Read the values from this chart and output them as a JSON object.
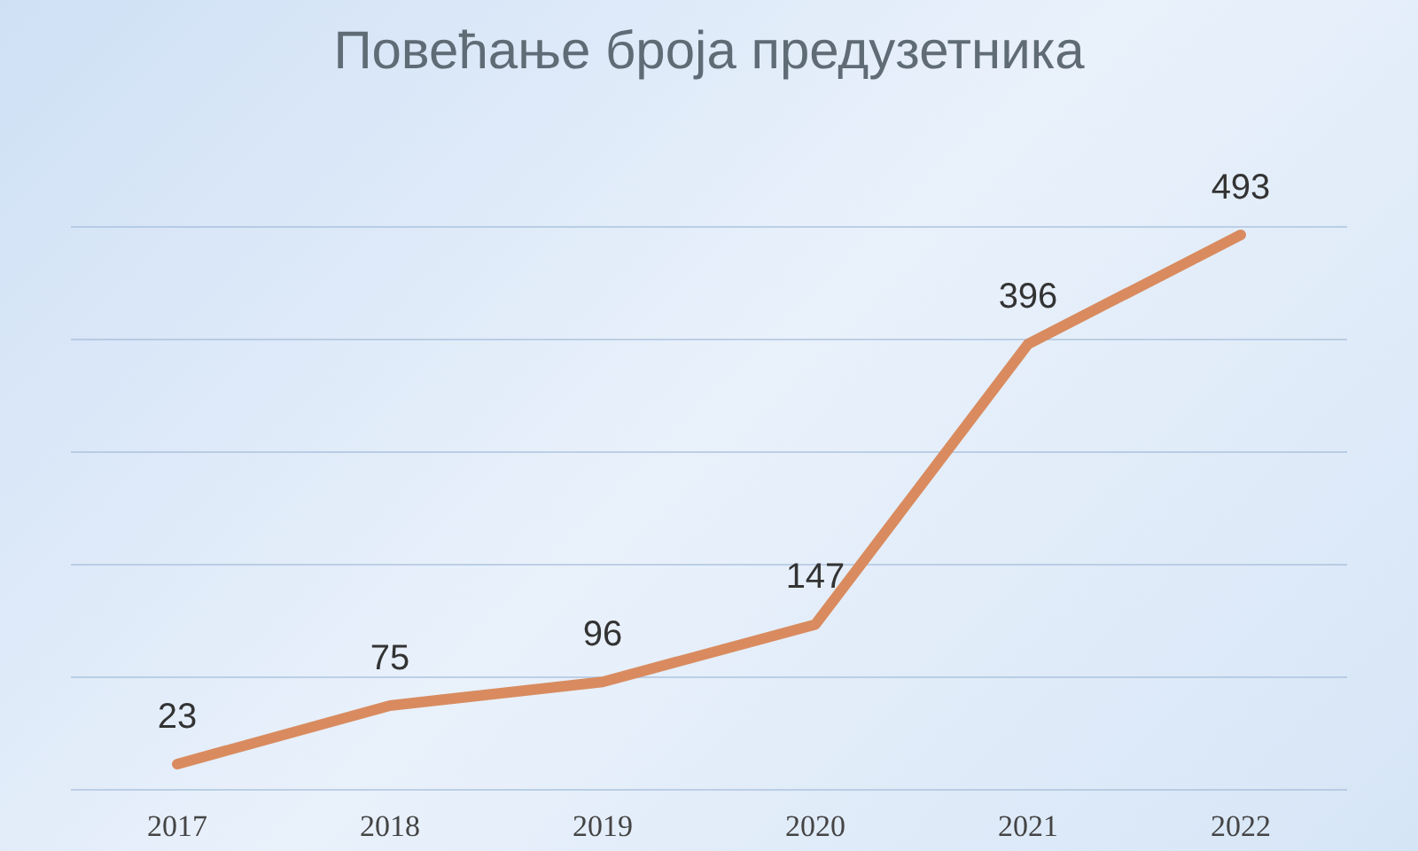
{
  "chart_data": {
    "type": "line",
    "title": "Повећање броја предузетника",
    "categories": [
      "2017",
      "2018",
      "2019",
      "2020",
      "2021",
      "2022"
    ],
    "series": [
      {
        "color": "#d98b5f",
        "values": [
          23,
          75,
          96,
          147,
          396,
          493
        ]
      }
    ],
    "ylim": [
      0,
      500
    ],
    "yticks": [
      {
        "value": 0,
        "label": null
      },
      {
        "value": 100,
        "label": null
      },
      {
        "value": 200,
        "label": null
      },
      {
        "value": 300,
        "label": null
      },
      {
        "value": 400,
        "label": null
      },
      {
        "value": 500,
        "label": null
      }
    ],
    "grid": "y",
    "tick_labels": "x",
    "data_labels": true,
    "legend": false,
    "marker": "none",
    "line_style": "solid"
  }
}
